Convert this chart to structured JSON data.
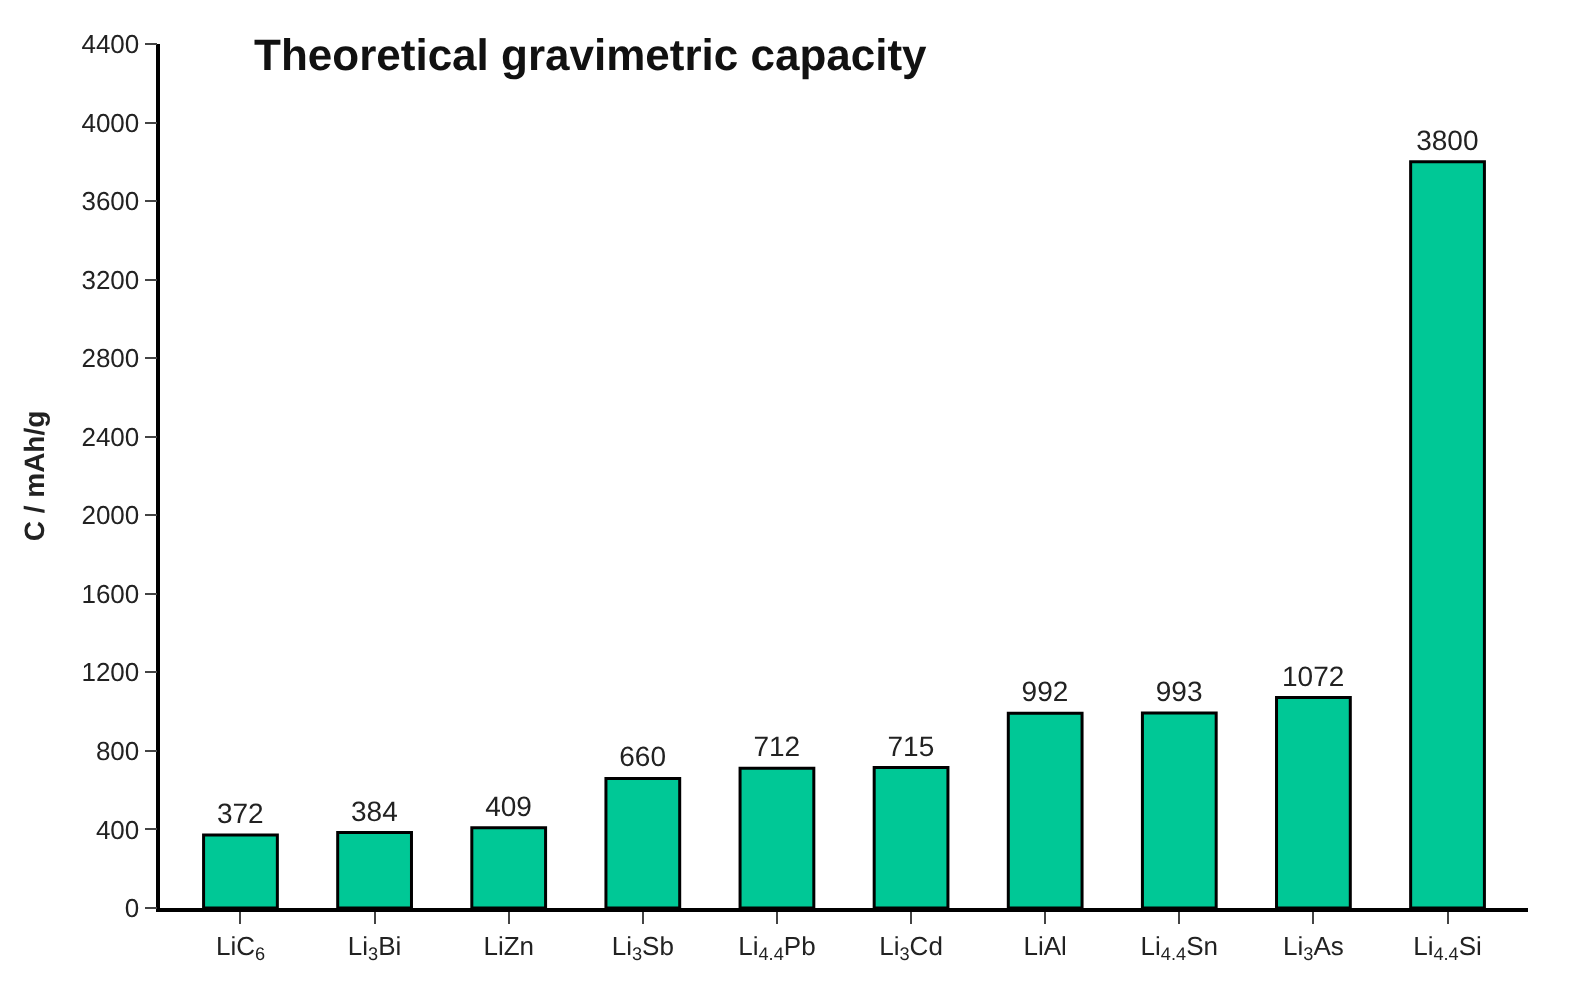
{
  "chart_data": {
    "type": "bar",
    "title": "Theoretical gravimetric capacity",
    "ylabel": "C / mAh/g",
    "categories": [
      "LiC$_{6}$",
      "Li$_{3}$Bi",
      "LiZn",
      "Li$_{3}$Sb",
      "Li$_{4.4}$Pb",
      "Li$_{3}$Cd",
      "LiAl",
      "Li$_{4.4}$Sn",
      "Li$_{3}$As",
      "Li$_{4.4}$Si"
    ],
    "values": [
      372,
      384,
      409,
      660,
      712,
      715,
      992,
      993,
      1072,
      3800
    ],
    "color": "#00c896",
    "ylim": [
      0,
      4400
    ],
    "yticks": [
      0,
      400,
      800,
      1200,
      1600,
      2000,
      2400,
      2800,
      3200,
      3600,
      4000,
      4400
    ],
    "data_labels": true
  }
}
